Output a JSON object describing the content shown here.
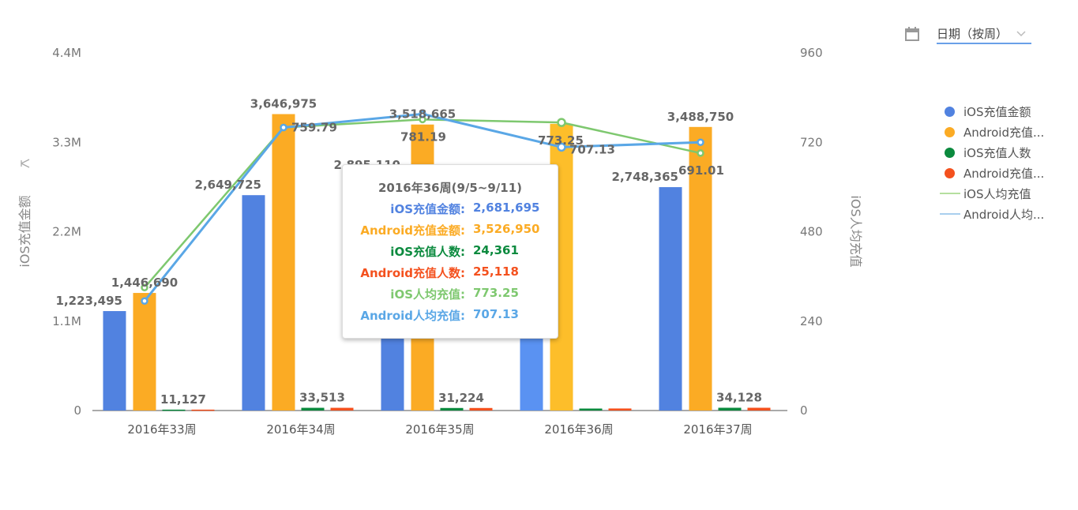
{
  "chart_data": {
    "type": "bar",
    "categories": [
      "2016年33周",
      "2016年34周",
      "2016年35周",
      "2016年36周",
      "2016年37周"
    ],
    "series": [
      {
        "name": "iOS充值金额",
        "kind": "bar",
        "axis": "left",
        "color": "#5182e0",
        "values": [
          1223495,
          2649725,
          2895110,
          2681695,
          2748365
        ]
      },
      {
        "name": "Android充值金额",
        "kind": "bar",
        "axis": "left",
        "color": "#fbab24",
        "values": [
          1446690,
          3646975,
          3518665,
          3526950,
          3488750
        ]
      },
      {
        "name": "iOS充值人数",
        "kind": "bar",
        "axis": "left",
        "color": "#0b8a3e",
        "values": [
          11127,
          33513,
          31224,
          24361,
          34128
        ]
      },
      {
        "name": "Android充值人数",
        "kind": "bar",
        "axis": "left",
        "color": "#f4511e",
        "values": [
          11127,
          33513,
          31224,
          25118,
          34128
        ]
      },
      {
        "name": "iOS人均充值",
        "kind": "line",
        "axis": "right",
        "color": "#7ec86f",
        "values": [
          330,
          759.79,
          781.19,
          773.25,
          691.01
        ]
      },
      {
        "name": "Android人均充值",
        "kind": "line",
        "axis": "right",
        "color": "#5aa7e6",
        "values": [
          294,
          759.79,
          796,
          707.13,
          720
        ]
      }
    ],
    "bar_labels": {
      "iOS充值金额": [
        "1,223,495",
        "2,649,725",
        "2,895,110",
        "",
        "2,748,365"
      ],
      "Android充值金额": [
        "1,446,690",
        "3,646,975",
        "3,518,665",
        "",
        "3,488,750"
      ],
      "iOS充值人数": [
        "11,127",
        "33,513",
        "31,224",
        "",
        "34,128"
      ]
    },
    "line_labels": {
      "iOS人均充值": [
        "",
        "759.79",
        "781.19",
        "773.25",
        "691.01"
      ],
      "Android人均充值": [
        "",
        "",
        "",
        "707.13",
        ""
      ]
    },
    "left_axis": {
      "title": "iOS充值金额",
      "ticks": [
        "0",
        "1.1M",
        "2.2M",
        "3.3M",
        "4.4M"
      ],
      "range": [
        0,
        4400000
      ]
    },
    "right_axis": {
      "title": "iOS人均充值",
      "ticks": [
        "0",
        "240",
        "480",
        "720",
        "960"
      ],
      "range": [
        0,
        960
      ]
    },
    "highlighted_category": "2016年36周",
    "legend_position": "right",
    "grid": false
  },
  "date_picker": {
    "label": "日期（按周）"
  },
  "legend": [
    {
      "label": "iOS充值金额",
      "type": "dot",
      "color": "#5182e0"
    },
    {
      "label": "Android充值...",
      "type": "dot",
      "color": "#fbab24"
    },
    {
      "label": "iOS充值人数",
      "type": "dot",
      "color": "#0b8a3e"
    },
    {
      "label": "Android充值...",
      "type": "dot",
      "color": "#f4511e"
    },
    {
      "label": "iOS人均充值",
      "type": "line",
      "color": "#b5df9f"
    },
    {
      "label": "Android人均...",
      "type": "line",
      "color": "#a9cfee"
    }
  ],
  "tooltip": {
    "title": "2016年36周(9/5~9/11)",
    "rows": [
      {
        "label": "iOS充值金额:",
        "value": "2,681,695",
        "color": "#5182e0"
      },
      {
        "label": "Android充值金额:",
        "value": "3,526,950",
        "color": "#fbab24"
      },
      {
        "label": "iOS充值人数:",
        "value": "24,361",
        "color": "#0b8a3e"
      },
      {
        "label": "Android充值人数:",
        "value": "25,118",
        "color": "#f4511e"
      },
      {
        "label": "iOS人均充值:",
        "value": "773.25",
        "color": "#7ec86f"
      },
      {
        "label": "Android人均充值:",
        "value": "707.13",
        "color": "#5aa7e6"
      }
    ]
  }
}
